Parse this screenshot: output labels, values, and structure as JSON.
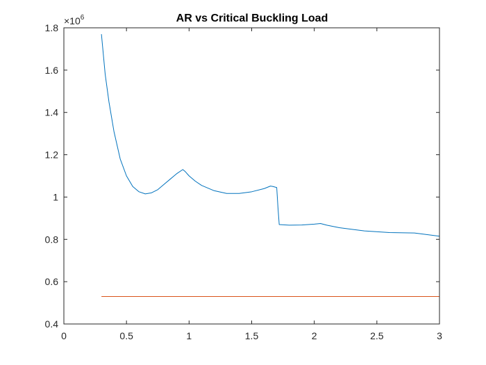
{
  "chart_data": {
    "type": "line",
    "title": "AR vs Critical Buckling Load",
    "xlabel": "",
    "ylabel": "",
    "xlim": [
      0,
      3
    ],
    "ylim": [
      0.4,
      1.8
    ],
    "y_multiplier": {
      "base": "×10",
      "exponent": "6"
    },
    "grid": false,
    "x_ticks": [
      0,
      0.5,
      1,
      1.5,
      2,
      2.5,
      3
    ],
    "x_tick_labels": [
      "0",
      "0.5",
      "1",
      "1.5",
      "2",
      "2.5",
      "3"
    ],
    "y_ticks": [
      0.4,
      0.6,
      0.8,
      1.0,
      1.2,
      1.4,
      1.6,
      1.8
    ],
    "y_tick_labels": [
      "0.4",
      "0.6",
      "0.8",
      "1",
      "1.2",
      "1.4",
      "1.6",
      "1.8"
    ],
    "colors": {
      "axis": "#262626",
      "series1": "#0072BD",
      "series2": "#D95319"
    },
    "series": [
      {
        "color": "#0072BD",
        "x": [
          0.3,
          0.33,
          0.36,
          0.4,
          0.45,
          0.5,
          0.55,
          0.6,
          0.65,
          0.7,
          0.75,
          0.8,
          0.85,
          0.9,
          0.95,
          0.97,
          1.0,
          1.05,
          1.1,
          1.2,
          1.3,
          1.4,
          1.5,
          1.6,
          1.65,
          1.67,
          1.7,
          1.71,
          1.72,
          1.8,
          1.9,
          2.0,
          2.05,
          2.1,
          2.2,
          2.4,
          2.6,
          2.8,
          3.0
        ],
        "y": [
          1.77,
          1.58,
          1.45,
          1.31,
          1.18,
          1.1,
          1.05,
          1.025,
          1.015,
          1.02,
          1.035,
          1.06,
          1.085,
          1.11,
          1.13,
          1.12,
          1.1,
          1.075,
          1.055,
          1.03,
          1.017,
          1.017,
          1.025,
          1.04,
          1.052,
          1.05,
          1.045,
          0.95,
          0.87,
          0.867,
          0.868,
          0.872,
          0.875,
          0.867,
          0.855,
          0.84,
          0.832,
          0.83,
          0.815
        ]
      },
      {
        "color": "#D95319",
        "x": [
          0.3,
          3.0
        ],
        "y": [
          0.53,
          0.53
        ]
      }
    ]
  }
}
